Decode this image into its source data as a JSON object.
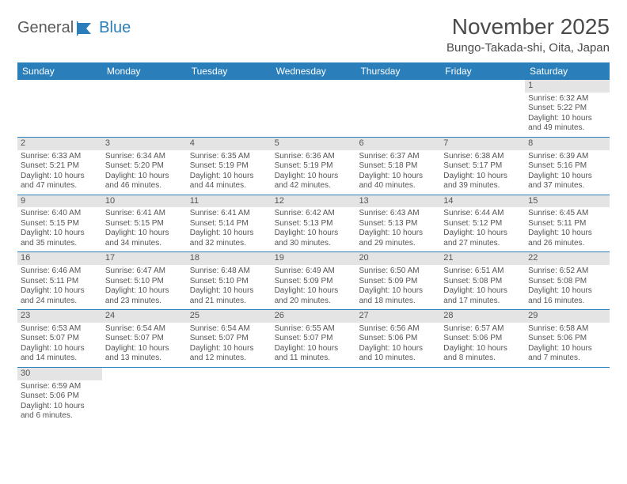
{
  "logo": {
    "text1": "General",
    "text2": "Blue"
  },
  "title": "November 2025",
  "location": "Bungo-Takada-shi, Oita, Japan",
  "colors": {
    "header_bg": "#2a7fba",
    "header_text": "#ffffff",
    "daynum_bg": "#e4e4e4",
    "row_border": "#2a7fba",
    "text": "#555555"
  },
  "weekdays": [
    "Sunday",
    "Monday",
    "Tuesday",
    "Wednesday",
    "Thursday",
    "Friday",
    "Saturday"
  ],
  "weeks": [
    [
      {
        "empty": true
      },
      {
        "empty": true
      },
      {
        "empty": true
      },
      {
        "empty": true
      },
      {
        "empty": true
      },
      {
        "empty": true
      },
      {
        "num": "1",
        "sunrise": "Sunrise: 6:32 AM",
        "sunset": "Sunset: 5:22 PM",
        "daylight1": "Daylight: 10 hours",
        "daylight2": "and 49 minutes."
      }
    ],
    [
      {
        "num": "2",
        "sunrise": "Sunrise: 6:33 AM",
        "sunset": "Sunset: 5:21 PM",
        "daylight1": "Daylight: 10 hours",
        "daylight2": "and 47 minutes."
      },
      {
        "num": "3",
        "sunrise": "Sunrise: 6:34 AM",
        "sunset": "Sunset: 5:20 PM",
        "daylight1": "Daylight: 10 hours",
        "daylight2": "and 46 minutes."
      },
      {
        "num": "4",
        "sunrise": "Sunrise: 6:35 AM",
        "sunset": "Sunset: 5:19 PM",
        "daylight1": "Daylight: 10 hours",
        "daylight2": "and 44 minutes."
      },
      {
        "num": "5",
        "sunrise": "Sunrise: 6:36 AM",
        "sunset": "Sunset: 5:19 PM",
        "daylight1": "Daylight: 10 hours",
        "daylight2": "and 42 minutes."
      },
      {
        "num": "6",
        "sunrise": "Sunrise: 6:37 AM",
        "sunset": "Sunset: 5:18 PM",
        "daylight1": "Daylight: 10 hours",
        "daylight2": "and 40 minutes."
      },
      {
        "num": "7",
        "sunrise": "Sunrise: 6:38 AM",
        "sunset": "Sunset: 5:17 PM",
        "daylight1": "Daylight: 10 hours",
        "daylight2": "and 39 minutes."
      },
      {
        "num": "8",
        "sunrise": "Sunrise: 6:39 AM",
        "sunset": "Sunset: 5:16 PM",
        "daylight1": "Daylight: 10 hours",
        "daylight2": "and 37 minutes."
      }
    ],
    [
      {
        "num": "9",
        "sunrise": "Sunrise: 6:40 AM",
        "sunset": "Sunset: 5:15 PM",
        "daylight1": "Daylight: 10 hours",
        "daylight2": "and 35 minutes."
      },
      {
        "num": "10",
        "sunrise": "Sunrise: 6:41 AM",
        "sunset": "Sunset: 5:15 PM",
        "daylight1": "Daylight: 10 hours",
        "daylight2": "and 34 minutes."
      },
      {
        "num": "11",
        "sunrise": "Sunrise: 6:41 AM",
        "sunset": "Sunset: 5:14 PM",
        "daylight1": "Daylight: 10 hours",
        "daylight2": "and 32 minutes."
      },
      {
        "num": "12",
        "sunrise": "Sunrise: 6:42 AM",
        "sunset": "Sunset: 5:13 PM",
        "daylight1": "Daylight: 10 hours",
        "daylight2": "and 30 minutes."
      },
      {
        "num": "13",
        "sunrise": "Sunrise: 6:43 AM",
        "sunset": "Sunset: 5:13 PM",
        "daylight1": "Daylight: 10 hours",
        "daylight2": "and 29 minutes."
      },
      {
        "num": "14",
        "sunrise": "Sunrise: 6:44 AM",
        "sunset": "Sunset: 5:12 PM",
        "daylight1": "Daylight: 10 hours",
        "daylight2": "and 27 minutes."
      },
      {
        "num": "15",
        "sunrise": "Sunrise: 6:45 AM",
        "sunset": "Sunset: 5:11 PM",
        "daylight1": "Daylight: 10 hours",
        "daylight2": "and 26 minutes."
      }
    ],
    [
      {
        "num": "16",
        "sunrise": "Sunrise: 6:46 AM",
        "sunset": "Sunset: 5:11 PM",
        "daylight1": "Daylight: 10 hours",
        "daylight2": "and 24 minutes."
      },
      {
        "num": "17",
        "sunrise": "Sunrise: 6:47 AM",
        "sunset": "Sunset: 5:10 PM",
        "daylight1": "Daylight: 10 hours",
        "daylight2": "and 23 minutes."
      },
      {
        "num": "18",
        "sunrise": "Sunrise: 6:48 AM",
        "sunset": "Sunset: 5:10 PM",
        "daylight1": "Daylight: 10 hours",
        "daylight2": "and 21 minutes."
      },
      {
        "num": "19",
        "sunrise": "Sunrise: 6:49 AM",
        "sunset": "Sunset: 5:09 PM",
        "daylight1": "Daylight: 10 hours",
        "daylight2": "and 20 minutes."
      },
      {
        "num": "20",
        "sunrise": "Sunrise: 6:50 AM",
        "sunset": "Sunset: 5:09 PM",
        "daylight1": "Daylight: 10 hours",
        "daylight2": "and 18 minutes."
      },
      {
        "num": "21",
        "sunrise": "Sunrise: 6:51 AM",
        "sunset": "Sunset: 5:08 PM",
        "daylight1": "Daylight: 10 hours",
        "daylight2": "and 17 minutes."
      },
      {
        "num": "22",
        "sunrise": "Sunrise: 6:52 AM",
        "sunset": "Sunset: 5:08 PM",
        "daylight1": "Daylight: 10 hours",
        "daylight2": "and 16 minutes."
      }
    ],
    [
      {
        "num": "23",
        "sunrise": "Sunrise: 6:53 AM",
        "sunset": "Sunset: 5:07 PM",
        "daylight1": "Daylight: 10 hours",
        "daylight2": "and 14 minutes."
      },
      {
        "num": "24",
        "sunrise": "Sunrise: 6:54 AM",
        "sunset": "Sunset: 5:07 PM",
        "daylight1": "Daylight: 10 hours",
        "daylight2": "and 13 minutes."
      },
      {
        "num": "25",
        "sunrise": "Sunrise: 6:54 AM",
        "sunset": "Sunset: 5:07 PM",
        "daylight1": "Daylight: 10 hours",
        "daylight2": "and 12 minutes."
      },
      {
        "num": "26",
        "sunrise": "Sunrise: 6:55 AM",
        "sunset": "Sunset: 5:07 PM",
        "daylight1": "Daylight: 10 hours",
        "daylight2": "and 11 minutes."
      },
      {
        "num": "27",
        "sunrise": "Sunrise: 6:56 AM",
        "sunset": "Sunset: 5:06 PM",
        "daylight1": "Daylight: 10 hours",
        "daylight2": "and 10 minutes."
      },
      {
        "num": "28",
        "sunrise": "Sunrise: 6:57 AM",
        "sunset": "Sunset: 5:06 PM",
        "daylight1": "Daylight: 10 hours",
        "daylight2": "and 8 minutes."
      },
      {
        "num": "29",
        "sunrise": "Sunrise: 6:58 AM",
        "sunset": "Sunset: 5:06 PM",
        "daylight1": "Daylight: 10 hours",
        "daylight2": "and 7 minutes."
      }
    ],
    [
      {
        "num": "30",
        "sunrise": "Sunrise: 6:59 AM",
        "sunset": "Sunset: 5:06 PM",
        "daylight1": "Daylight: 10 hours",
        "daylight2": "and 6 minutes."
      },
      {
        "empty": true
      },
      {
        "empty": true
      },
      {
        "empty": true
      },
      {
        "empty": true
      },
      {
        "empty": true
      },
      {
        "empty": true
      }
    ]
  ]
}
